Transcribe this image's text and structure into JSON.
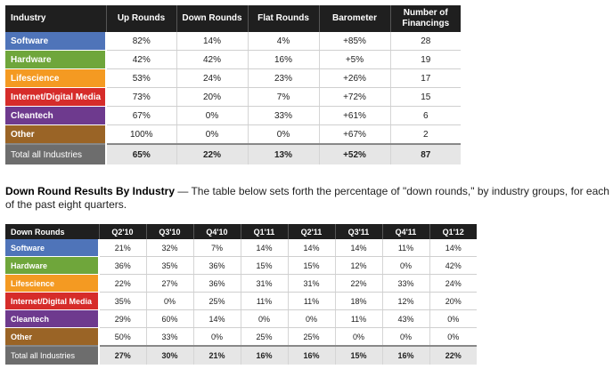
{
  "colors": {
    "software": "#4f74b9",
    "hardware": "#6fa63b",
    "lifescience": "#f49a22",
    "internet": "#d62c2a",
    "cleantech": "#6e3a8e",
    "other": "#9a6426",
    "total": "#6d6d6d",
    "header": "#1f1f1f"
  },
  "table1": {
    "headers": [
      "Industry",
      "Up Rounds",
      "Down Rounds",
      "Flat Rounds",
      "Barometer",
      "Number of Financings"
    ],
    "rows": [
      {
        "label": "Software",
        "color": "#4f74b9",
        "cells": [
          "82%",
          "14%",
          "4%",
          "+85%",
          "28"
        ]
      },
      {
        "label": "Hardware",
        "color": "#6fa63b",
        "cells": [
          "42%",
          "42%",
          "16%",
          "+5%",
          "19"
        ]
      },
      {
        "label": "Lifescience",
        "color": "#f49a22",
        "cells": [
          "53%",
          "24%",
          "23%",
          "+26%",
          "17"
        ]
      },
      {
        "label": "Internet/Digital Media",
        "color": "#d62c2a",
        "cells": [
          "73%",
          "20%",
          "7%",
          "+72%",
          "15"
        ]
      },
      {
        "label": "Cleantech",
        "color": "#6e3a8e",
        "cells": [
          "67%",
          "0%",
          "33%",
          "+61%",
          "6"
        ]
      },
      {
        "label": "Other",
        "color": "#9a6426",
        "cells": [
          "100%",
          "0%",
          "0%",
          "+67%",
          "2"
        ]
      }
    ],
    "total": {
      "label": "Total all Industries",
      "cells": [
        "65%",
        "22%",
        "13%",
        "+52%",
        "87"
      ]
    }
  },
  "caption": {
    "bold": "Down Round Results By Industry",
    "text": " — The table below sets forth the percentage of \"down rounds,\" by industry groups, for each of the past eight quarters."
  },
  "table2": {
    "headers": [
      "Down Rounds",
      "Q2'10",
      "Q3'10",
      "Q4'10",
      "Q1'11",
      "Q2'11",
      "Q3'11",
      "Q4'11",
      "Q1'12"
    ],
    "rows": [
      {
        "label": "Software",
        "color": "#4f74b9",
        "cells": [
          "21%",
          "32%",
          "7%",
          "14%",
          "14%",
          "14%",
          "11%",
          "14%"
        ]
      },
      {
        "label": "Hardware",
        "color": "#6fa63b",
        "cells": [
          "36%",
          "35%",
          "36%",
          "15%",
          "15%",
          "12%",
          "0%",
          "42%"
        ]
      },
      {
        "label": "Lifescience",
        "color": "#f49a22",
        "cells": [
          "22%",
          "27%",
          "36%",
          "31%",
          "31%",
          "22%",
          "33%",
          "24%"
        ]
      },
      {
        "label": "Internet/Digital Media",
        "color": "#d62c2a",
        "cells": [
          "35%",
          "0%",
          "25%",
          "11%",
          "11%",
          "18%",
          "12%",
          "20%"
        ]
      },
      {
        "label": "Cleantech",
        "color": "#6e3a8e",
        "cells": [
          "29%",
          "60%",
          "14%",
          "0%",
          "0%",
          "11%",
          "43%",
          "0%"
        ]
      },
      {
        "label": "Other",
        "color": "#9a6426",
        "cells": [
          "50%",
          "33%",
          "0%",
          "25%",
          "25%",
          "0%",
          "0%",
          "0%"
        ]
      }
    ],
    "total": {
      "label": "Total all Industries",
      "cells": [
        "27%",
        "30%",
        "21%",
        "16%",
        "16%",
        "15%",
        "16%",
        "22%"
      ]
    }
  }
}
